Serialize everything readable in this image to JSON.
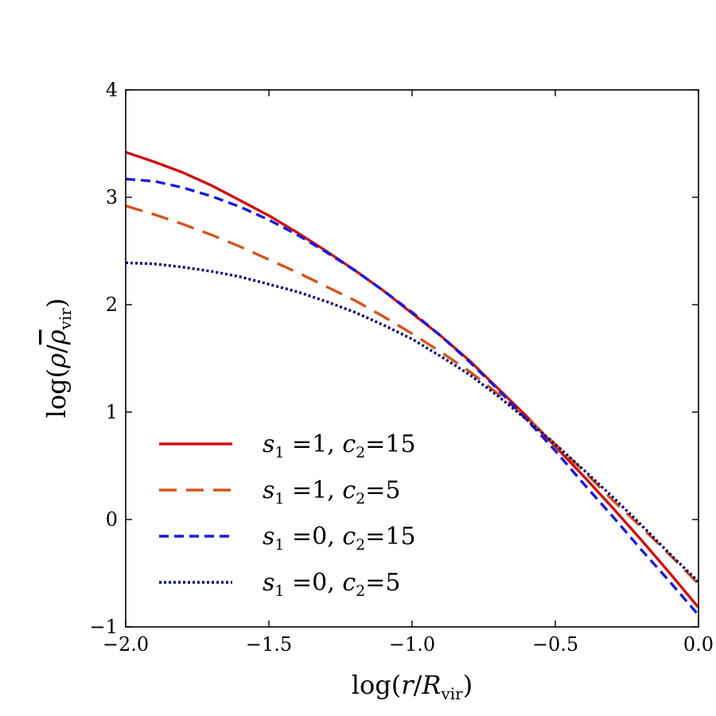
{
  "chart_data": {
    "type": "line",
    "title": "",
    "xlabel": "log(r/R_vir)",
    "ylabel": "log(ρ/ρ̄_vir)",
    "xlim": [
      -2.0,
      0.0
    ],
    "ylim": [
      -1,
      4
    ],
    "xticks": [
      -2.0,
      -1.5,
      -1.0,
      -0.5,
      0.0
    ],
    "xtick_labels": [
      "−2.0",
      "−1.5",
      "−1.0",
      "−0.5",
      "0.0"
    ],
    "yticks": [
      -1,
      0,
      1,
      2,
      3,
      4
    ],
    "ytick_labels": [
      "−1",
      "0",
      "1",
      "2",
      "3",
      "4"
    ],
    "grid": false,
    "legend_position": "lower-left",
    "series": [
      {
        "name": "s1=1, c2=15",
        "legend": {
          "s_sub": "1",
          "s_val": "=1,",
          "c_sub": "2",
          "c_val": "=15"
        },
        "color": "#cc1111",
        "style": "solid",
        "x": [
          -2.0,
          -1.9,
          -1.8,
          -1.7,
          -1.6,
          -1.5,
          -1.4,
          -1.3,
          -1.2,
          -1.1,
          -1.0,
          -0.9,
          -0.8,
          -0.7,
          -0.6,
          -0.5,
          -0.4,
          -0.3,
          -0.2,
          -0.1,
          0.0
        ],
        "y": [
          3.42,
          3.33,
          3.23,
          3.11,
          2.97,
          2.83,
          2.67,
          2.5,
          2.32,
          2.13,
          1.92,
          1.71,
          1.48,
          1.22,
          0.96,
          0.68,
          0.4,
          0.11,
          -0.19,
          -0.5,
          -0.82
        ]
      },
      {
        "name": "s1=1, c2=5",
        "legend": {
          "s_sub": "1",
          "s_val": "=1,",
          "c_sub": "2",
          "c_val": "=5"
        },
        "color": "#d4541c",
        "style": "dashed",
        "x": [
          -2.0,
          -1.9,
          -1.8,
          -1.7,
          -1.6,
          -1.5,
          -1.4,
          -1.3,
          -1.2,
          -1.1,
          -1.0,
          -0.9,
          -0.8,
          -0.7,
          -0.6,
          -0.5,
          -0.4,
          -0.3,
          -0.2,
          -0.1,
          0.0
        ],
        "y": [
          2.92,
          2.84,
          2.75,
          2.65,
          2.54,
          2.42,
          2.3,
          2.17,
          2.04,
          1.89,
          1.73,
          1.56,
          1.38,
          1.17,
          0.95,
          0.7,
          0.45,
          0.18,
          -0.07,
          -0.33,
          -0.6
        ]
      },
      {
        "name": "s1=0, c2=15",
        "legend": {
          "s_sub": "1",
          "s_val": "=0,",
          "c_sub": "2",
          "c_val": "=15"
        },
        "color": "#1a1adc",
        "style": "short-dashed",
        "x": [
          -2.0,
          -1.9,
          -1.8,
          -1.7,
          -1.6,
          -1.5,
          -1.4,
          -1.3,
          -1.2,
          -1.1,
          -1.0,
          -0.9,
          -0.8,
          -0.7,
          -0.6,
          -0.5,
          -0.4,
          -0.3,
          -0.2,
          -0.1,
          0.0
        ],
        "y": [
          3.17,
          3.15,
          3.09,
          3.01,
          2.91,
          2.79,
          2.65,
          2.49,
          2.32,
          2.13,
          1.93,
          1.71,
          1.47,
          1.21,
          0.93,
          0.64,
          0.33,
          0.03,
          -0.28,
          -0.58,
          -0.89
        ]
      },
      {
        "name": "s1=0, c2=5",
        "legend": {
          "s_sub": "1",
          "s_val": "=0,",
          "c_sub": "2",
          "c_val": "=5"
        },
        "color": "#0a0a6e",
        "style": "dotted",
        "x": [
          -2.0,
          -1.9,
          -1.8,
          -1.7,
          -1.6,
          -1.5,
          -1.4,
          -1.3,
          -1.2,
          -1.1,
          -1.0,
          -0.9,
          -0.8,
          -0.7,
          -0.6,
          -0.5,
          -0.4,
          -0.3,
          -0.2,
          -0.1,
          0.0
        ],
        "y": [
          2.39,
          2.38,
          2.35,
          2.31,
          2.26,
          2.19,
          2.12,
          2.03,
          1.93,
          1.81,
          1.68,
          1.52,
          1.35,
          1.15,
          0.93,
          0.7,
          0.46,
          0.21,
          -0.05,
          -0.32,
          -0.58
        ]
      }
    ]
  }
}
